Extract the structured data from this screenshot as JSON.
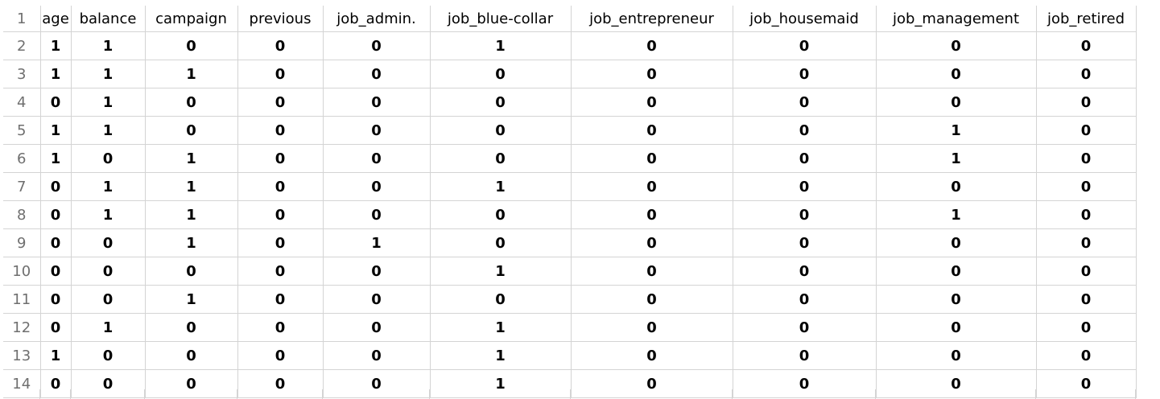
{
  "spreadsheet": {
    "row_numbers": [
      "1",
      "2",
      "3",
      "4",
      "5",
      "6",
      "7",
      "8",
      "9",
      "10",
      "11",
      "12",
      "13",
      "14"
    ],
    "columns": [
      "age",
      "balance",
      "campaign",
      "previous",
      "job_admin.",
      "job_blue-collar",
      "job_entrepreneur",
      "job_housemaid",
      "job_management",
      "job_retired"
    ],
    "rows": [
      [
        "1",
        "1",
        "0",
        "0",
        "0",
        "1",
        "0",
        "0",
        "0",
        "0"
      ],
      [
        "1",
        "1",
        "1",
        "0",
        "0",
        "0",
        "0",
        "0",
        "0",
        "0"
      ],
      [
        "0",
        "1",
        "0",
        "0",
        "0",
        "0",
        "0",
        "0",
        "0",
        "0"
      ],
      [
        "1",
        "1",
        "0",
        "0",
        "0",
        "0",
        "0",
        "0",
        "1",
        "0"
      ],
      [
        "1",
        "0",
        "1",
        "0",
        "0",
        "0",
        "0",
        "0",
        "1",
        "0"
      ],
      [
        "0",
        "1",
        "1",
        "0",
        "0",
        "1",
        "0",
        "0",
        "0",
        "0"
      ],
      [
        "0",
        "1",
        "1",
        "0",
        "0",
        "0",
        "0",
        "0",
        "1",
        "0"
      ],
      [
        "0",
        "0",
        "1",
        "0",
        "1",
        "0",
        "0",
        "0",
        "0",
        "0"
      ],
      [
        "0",
        "0",
        "0",
        "0",
        "0",
        "1",
        "0",
        "0",
        "0",
        "0"
      ],
      [
        "0",
        "0",
        "1",
        "0",
        "0",
        "0",
        "0",
        "0",
        "0",
        "0"
      ],
      [
        "0",
        "1",
        "0",
        "0",
        "0",
        "1",
        "0",
        "0",
        "0",
        "0"
      ],
      [
        "1",
        "0",
        "0",
        "0",
        "0",
        "1",
        "0",
        "0",
        "0",
        "0"
      ],
      [
        "0",
        "0",
        "0",
        "0",
        "0",
        "1",
        "0",
        "0",
        "0",
        "0"
      ]
    ]
  },
  "colors": {
    "gridline": "#d4d4d4",
    "row_number_text": "#6f6f6f",
    "cell_text": "#000000"
  }
}
